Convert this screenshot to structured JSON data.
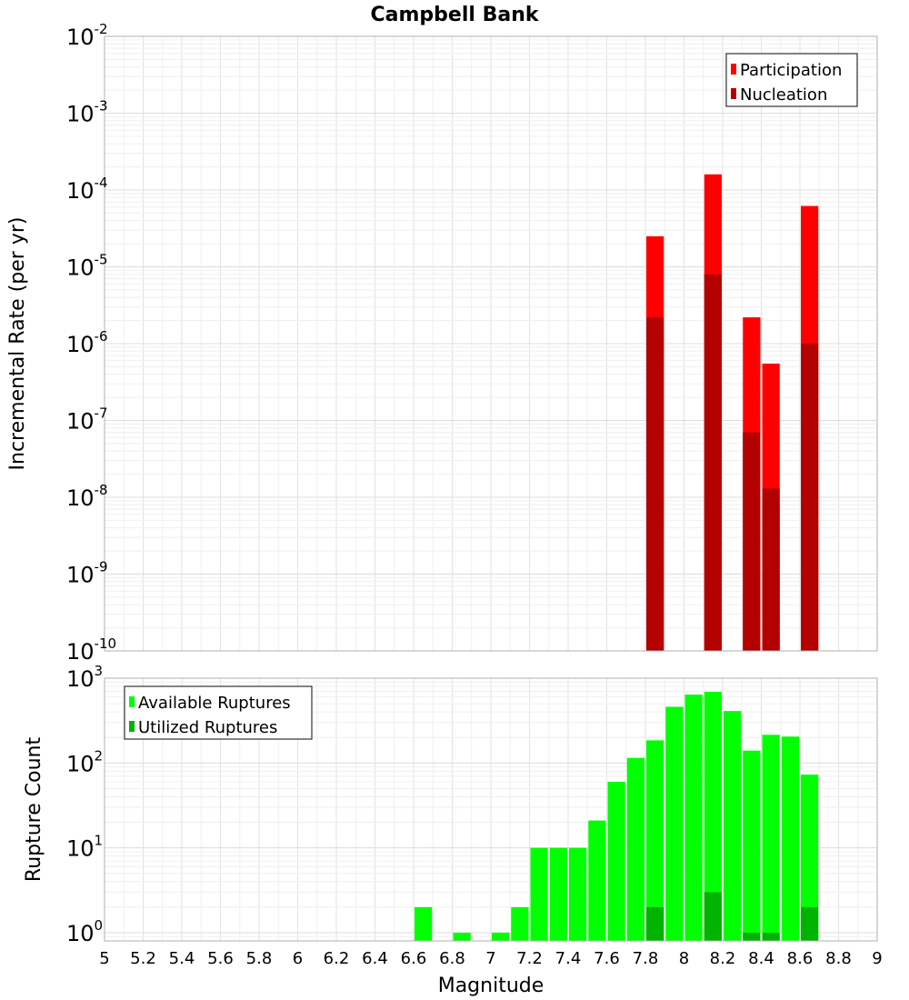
{
  "chart_data": [
    {
      "type": "bar",
      "title": "Campbell Bank",
      "xlabel": "",
      "ylabel": "Incremental Rate (per yr)",
      "yscale": "log",
      "ylim": [
        1e-10,
        0.01
      ],
      "xlim": [
        5,
        9
      ],
      "y_ticks": [
        {
          "base": "10",
          "exp": "-2"
        },
        {
          "base": "10",
          "exp": "-3"
        },
        {
          "base": "10",
          "exp": "-4"
        },
        {
          "base": "10",
          "exp": "-5"
        },
        {
          "base": "10",
          "exp": "-6"
        },
        {
          "base": "10",
          "exp": "-7"
        },
        {
          "base": "10",
          "exp": "-8"
        },
        {
          "base": "10",
          "exp": "-9"
        },
        {
          "base": "10",
          "exp": "-10"
        }
      ],
      "legend_position": "top-right",
      "grid": true,
      "series": [
        {
          "name": "Participation",
          "color": "#ff0000",
          "points": [
            [
              7.85,
              2.5e-05
            ],
            [
              8.15,
              0.00016
            ],
            [
              8.35,
              2.2e-06
            ],
            [
              8.45,
              5.5e-07
            ],
            [
              8.65,
              6.2e-05
            ]
          ]
        },
        {
          "name": "Nucleation",
          "color": "#b30000",
          "points": [
            [
              7.85,
              2.2e-06
            ],
            [
              8.15,
              8e-06
            ],
            [
              8.35,
              7e-08
            ],
            [
              8.45,
              1.3e-08
            ],
            [
              8.65,
              1e-06
            ]
          ]
        }
      ]
    },
    {
      "type": "bar",
      "title": "",
      "xlabel": "Magnitude",
      "ylabel": "Rupture Count",
      "yscale": "log",
      "ylim": [
        0.8,
        1000
      ],
      "xlim": [
        5,
        9
      ],
      "x_ticks": [
        "5",
        "5.2",
        "5.4",
        "5.6",
        "5.8",
        "6",
        "6.2",
        "6.4",
        "6.6",
        "6.8",
        "7",
        "7.2",
        "7.4",
        "7.6",
        "7.8",
        "8",
        "8.2",
        "8.4",
        "8.6",
        "8.8",
        "9"
      ],
      "y_ticks": [
        {
          "base": "10",
          "exp": "3"
        },
        {
          "base": "10",
          "exp": "2"
        },
        {
          "base": "10",
          "exp": "1"
        },
        {
          "base": "10",
          "exp": "0"
        }
      ],
      "legend_position": "top-left",
      "grid": true,
      "series": [
        {
          "name": "Available Ruptures",
          "color": "#00ff00",
          "points": [
            [
              6.65,
              2
            ],
            [
              6.85,
              1
            ],
            [
              7.05,
              1
            ],
            [
              7.15,
              2
            ],
            [
              7.25,
              10
            ],
            [
              7.35,
              10
            ],
            [
              7.45,
              10
            ],
            [
              7.55,
              21
            ],
            [
              7.65,
              60
            ],
            [
              7.75,
              115
            ],
            [
              7.85,
              185
            ],
            [
              7.95,
              460
            ],
            [
              8.05,
              640
            ],
            [
              8.15,
              690
            ],
            [
              8.25,
              410
            ],
            [
              8.35,
              140
            ],
            [
              8.45,
              215
            ],
            [
              8.55,
              205
            ],
            [
              8.65,
              73
            ]
          ]
        },
        {
          "name": "Utilized Ruptures",
          "color": "#00b300",
          "points": [
            [
              7.85,
              2
            ],
            [
              8.15,
              3
            ],
            [
              8.35,
              1
            ],
            [
              8.45,
              1
            ],
            [
              8.65,
              2
            ]
          ]
        }
      ]
    }
  ]
}
